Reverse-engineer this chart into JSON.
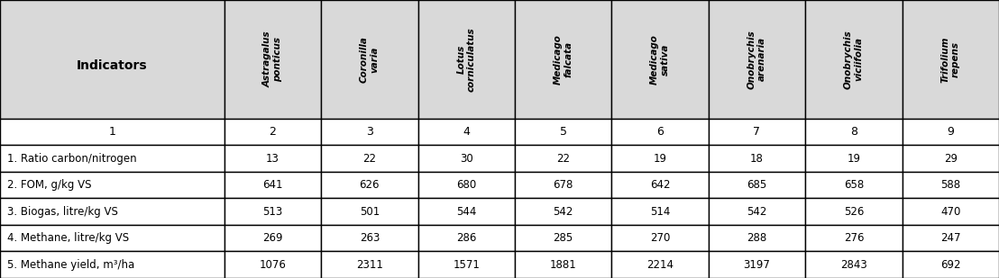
{
  "col_headers": [
    "Indicators",
    "Astragalus\nponticus",
    "Coronilla\nvaria",
    "Lotus\ncorniculatus",
    "Medicago\nfalcata",
    "Medicago\nsativa",
    "Onobrychis\narenaria",
    "Onobrychis\nviciifolia",
    "Trifolium\nrepens"
  ],
  "col_numbers": [
    "1",
    "2",
    "3",
    "4",
    "5",
    "6",
    "7",
    "8",
    "9"
  ],
  "rows": [
    [
      "1. Ratio carbon/nitrogen",
      "13",
      "22",
      "30",
      "22",
      "19",
      "18",
      "19",
      "29"
    ],
    [
      "2. FOM, g/kg VS",
      "641",
      "626",
      "680",
      "678",
      "642",
      "685",
      "658",
      "588"
    ],
    [
      "3. Biogas, litre/kg VS",
      "513",
      "501",
      "544",
      "542",
      "514",
      "542",
      "526",
      "470"
    ],
    [
      "4. Methane, litre/kg VS",
      "269",
      "263",
      "286",
      "285",
      "270",
      "288",
      "276",
      "247"
    ],
    [
      "5. Methane yield, m³/ha",
      "1076",
      "2311",
      "1571",
      "1881",
      "2214",
      "3197",
      "2843",
      "692"
    ]
  ],
  "header_bg": "#d9d9d9",
  "white_bg": "#ffffff",
  "border_color": "#000000",
  "text_color": "#000000",
  "figsize": [
    11.08,
    3.09
  ],
  "dpi": 100,
  "col_widths_raw": [
    2.2,
    0.95,
    0.95,
    0.95,
    0.95,
    0.95,
    0.95,
    0.95,
    0.95
  ],
  "row_heights_raw": [
    1.25,
    0.28,
    0.28,
    0.28,
    0.28,
    0.28,
    0.28
  ]
}
